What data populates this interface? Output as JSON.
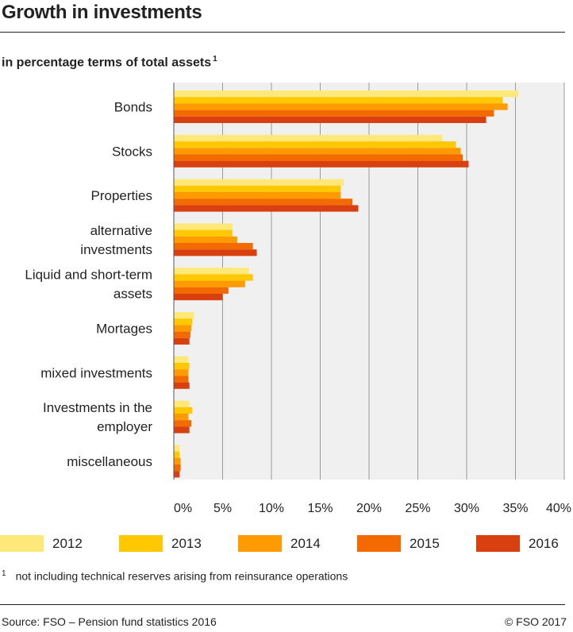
{
  "header": {
    "title": "Growth in investments",
    "subtitle": "in percentage terms of total assets",
    "subtitle_note": "1"
  },
  "chart_data": {
    "type": "bar",
    "orientation": "horizontal",
    "title": "Growth in investments",
    "subtitle": "in percentage terms of total assets",
    "categories": [
      "Bonds",
      "Stocks",
      "Properties",
      "alternative investments",
      "Liquid and short-term assets",
      "Mortages",
      "mixed investments",
      "Investments in the employer",
      "miscellaneous"
    ],
    "category_lines": [
      [
        "Bonds"
      ],
      [
        "Stocks"
      ],
      [
        "Properties"
      ],
      [
        "alternative",
        "investments"
      ],
      [
        "Liquid and short-term",
        "assets"
      ],
      [
        "Mortages"
      ],
      [
        "mixed investments"
      ],
      [
        "Investments in the",
        "employer"
      ],
      [
        "miscellaneous"
      ]
    ],
    "series": [
      {
        "name": "2012",
        "color": "#ffe87a",
        "values": [
          35.3,
          27.5,
          17.4,
          6.0,
          7.7,
          2.1,
          1.5,
          1.6,
          0.6
        ]
      },
      {
        "name": "2013",
        "color": "#ffc800",
        "values": [
          33.7,
          28.9,
          17.1,
          6.0,
          8.1,
          1.9,
          1.6,
          1.9,
          0.6
        ]
      },
      {
        "name": "2014",
        "color": "#ff9a00",
        "values": [
          34.2,
          29.4,
          17.1,
          6.5,
          7.3,
          1.8,
          1.5,
          1.5,
          0.7
        ]
      },
      {
        "name": "2015",
        "color": "#f26a00",
        "values": [
          32.8,
          29.6,
          18.3,
          8.1,
          5.6,
          1.7,
          1.5,
          1.8,
          0.7
        ]
      },
      {
        "name": "2016",
        "color": "#d9400f",
        "values": [
          32.0,
          30.2,
          18.9,
          8.5,
          5.0,
          1.6,
          1.6,
          1.6,
          0.6
        ]
      }
    ],
    "x_ticks": [
      "0%",
      "5%",
      "10%",
      "15%",
      "20%",
      "25%",
      "30%",
      "35%",
      "40%"
    ],
    "xlim": [
      0,
      40
    ],
    "grid": true,
    "legend_placement": "bottom"
  },
  "footnote": {
    "mark": "1",
    "text": "not including technical reserves arising from reinsurance operations"
  },
  "footer": {
    "source": "Source: FSO – Pension fund statistics 2016",
    "copyright": "© FSO 2017"
  }
}
